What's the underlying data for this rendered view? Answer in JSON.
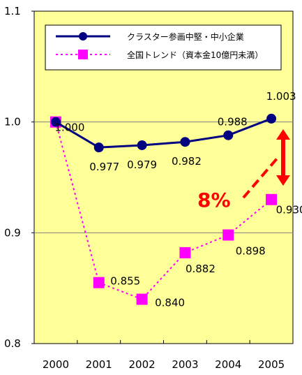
{
  "chart_data": {
    "type": "line",
    "categories": [
      "2000",
      "2001",
      "2002",
      "2003",
      "2004",
      "2005"
    ],
    "ylim": [
      0.8,
      1.1
    ],
    "yticks": [
      0.8,
      0.9,
      1.0,
      1.1
    ],
    "ytick_labels": [
      "0.8",
      "0.9",
      "1.0",
      "1.1"
    ],
    "grid": true,
    "legend_position": "top",
    "series": [
      {
        "name": "クラスター参画中堅・中小企業",
        "values": [
          1.0,
          0.977,
          0.979,
          0.982,
          0.988,
          1.003
        ],
        "labels": [
          "1.000",
          "0.977",
          "0.979",
          "0.982",
          "0.988",
          "1.003"
        ],
        "color": "#000080",
        "marker": "circle",
        "line": "solid"
      },
      {
        "name": "全国トレンド（資本金10億円未満）",
        "values": [
          1.0,
          0.855,
          0.84,
          0.882,
          0.898,
          0.93
        ],
        "labels": [
          "",
          "0.855",
          "0.840",
          "0.882",
          "0.898",
          "0.930"
        ],
        "color": "#ff00ff",
        "marker": "square",
        "line": "dotted"
      }
    ],
    "annotation": {
      "text": "8%",
      "color": "#ff0000",
      "between": [
        1.003,
        0.93
      ],
      "at_category": "2005"
    },
    "plot_background": "#ffff99"
  }
}
